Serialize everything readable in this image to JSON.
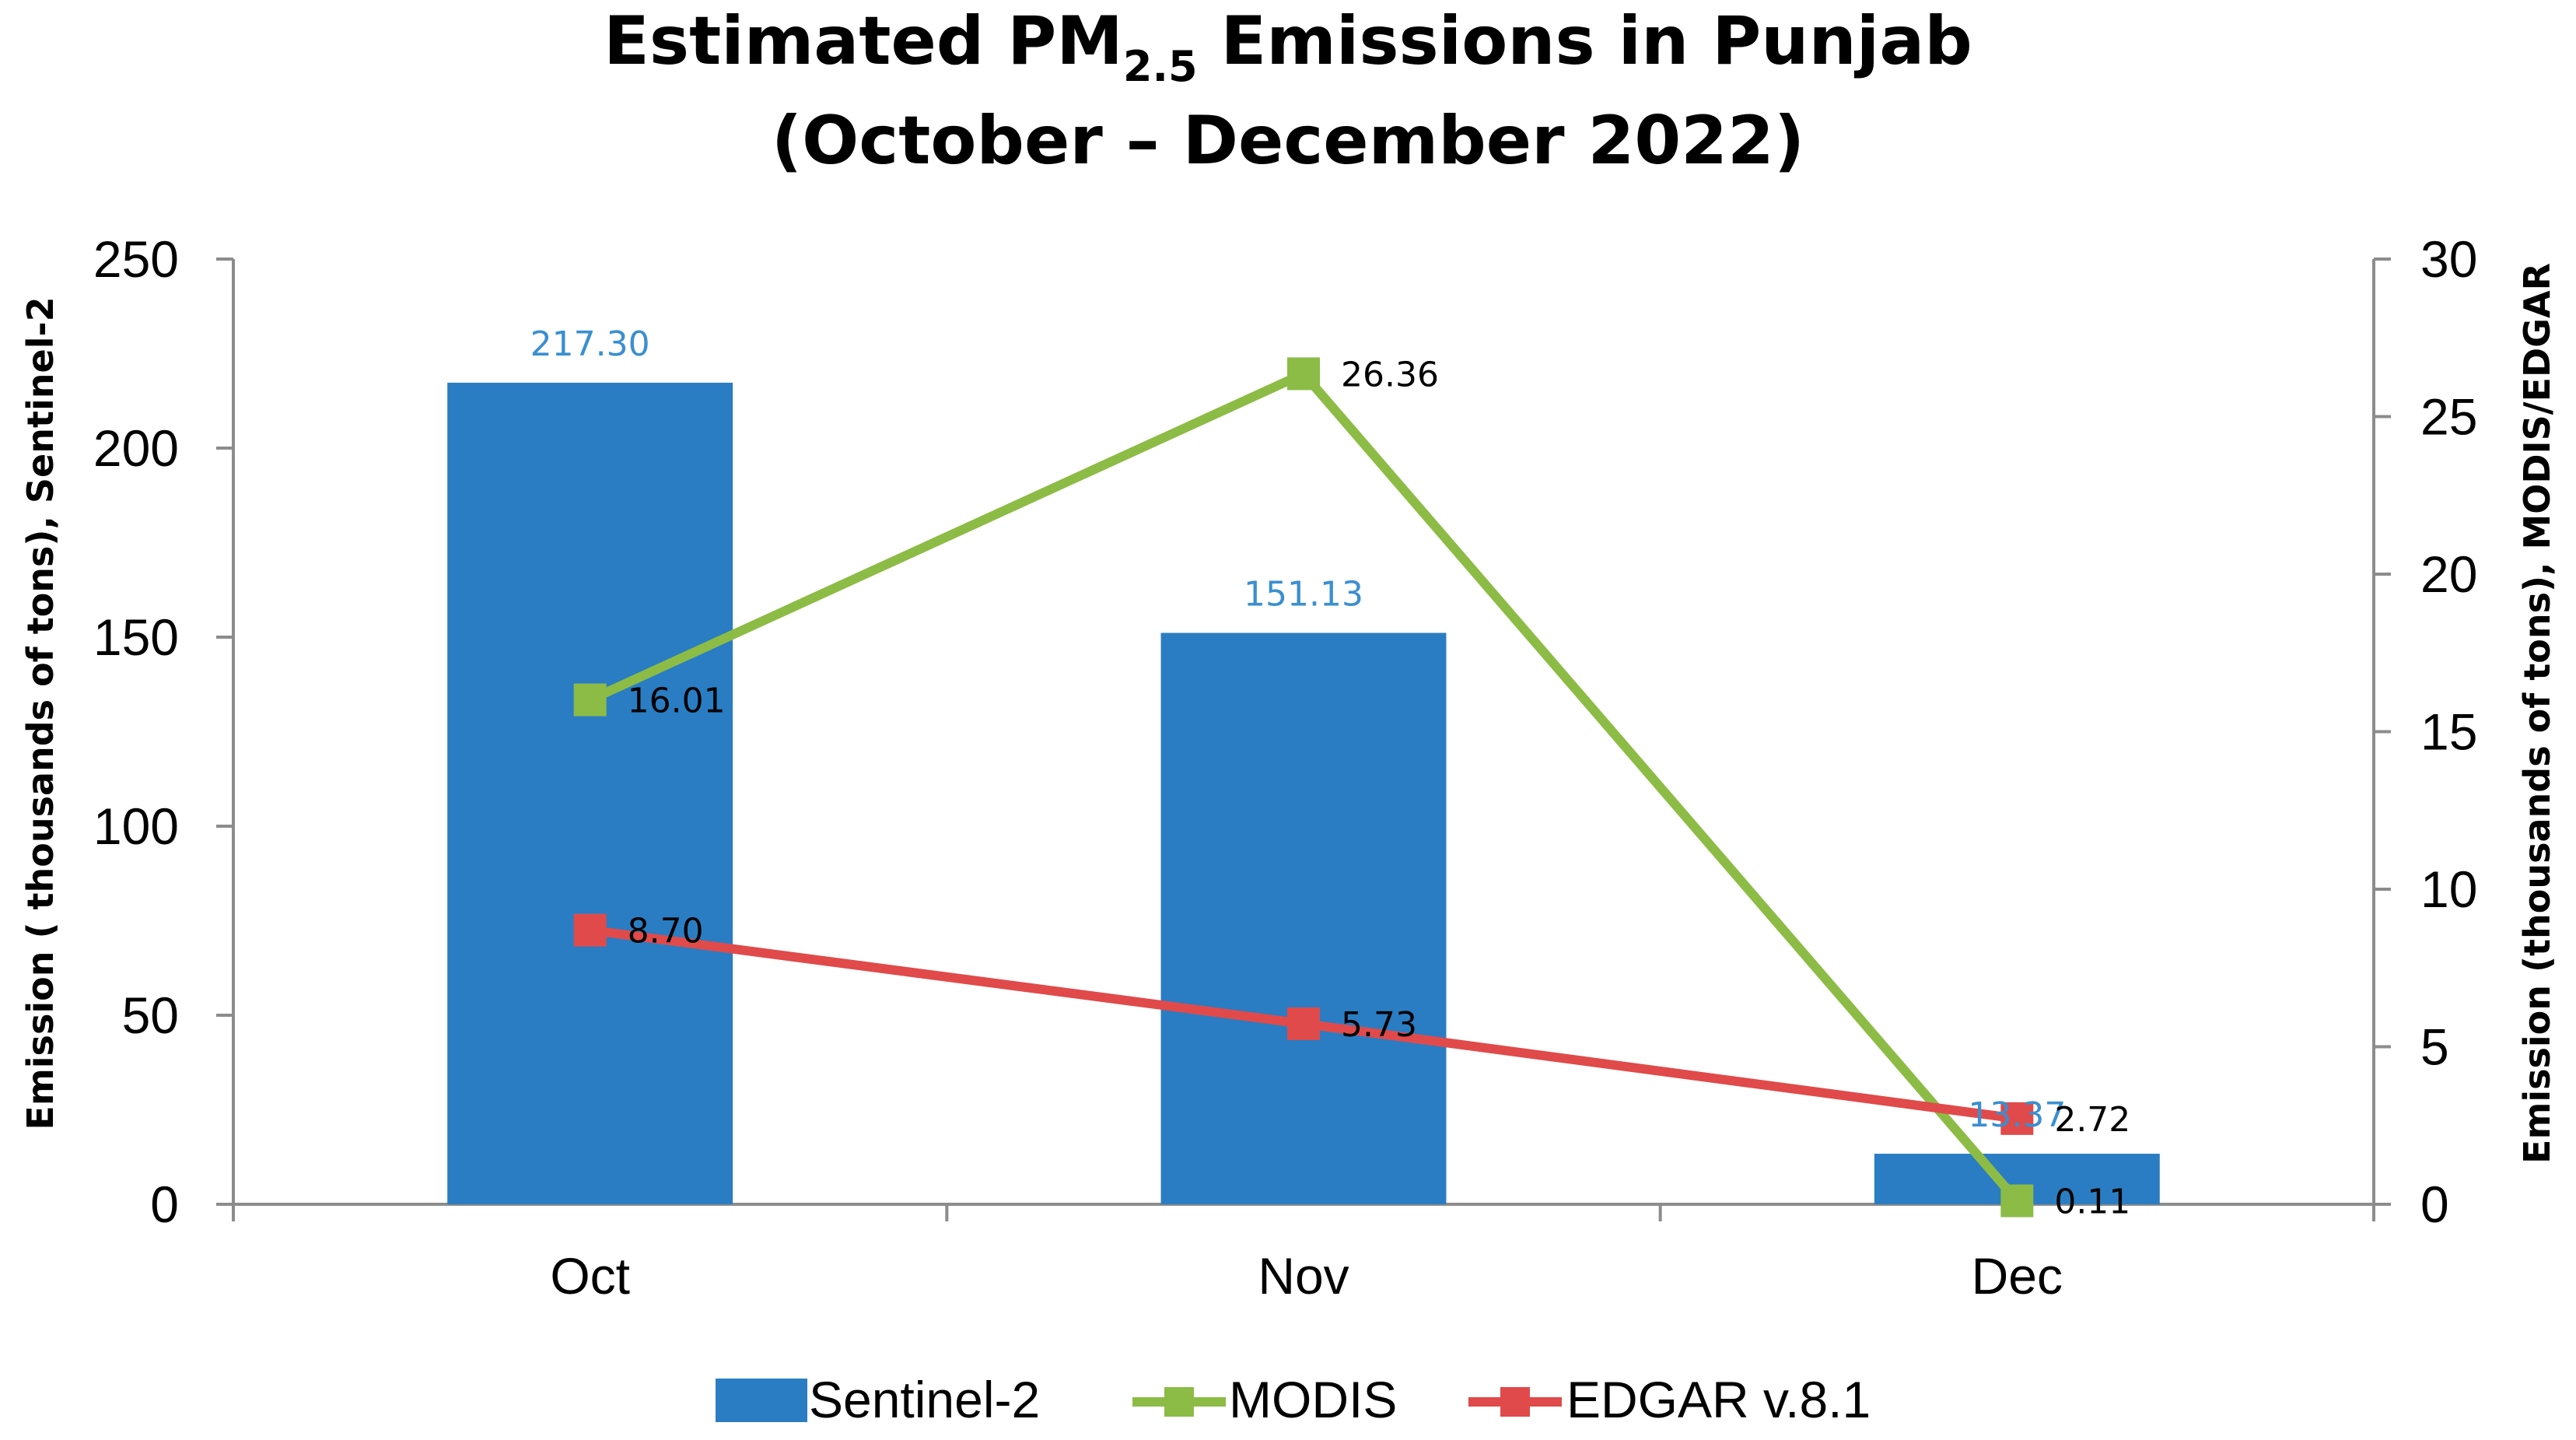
{
  "chart_data": {
    "type": "bar",
    "title": {
      "part1": "Estimated PM",
      "subscript": "2.5",
      "part2": " Emissions in Punjab",
      "line2": "(October – December 2022)"
    },
    "categories": [
      "Oct",
      "Nov",
      "Dec"
    ],
    "ylabel_left": "Emission ( thousands of tons), Sentinel-2",
    "ylabel_right": "Emission (thousands of tons), MODIS/EDGAR",
    "ylim_left": [
      0,
      250
    ],
    "yticks_left": [
      0,
      50,
      100,
      150,
      200,
      250
    ],
    "ylim_right": [
      0,
      30
    ],
    "yticks_right": [
      0,
      5,
      10,
      15,
      20,
      25,
      30
    ],
    "grid": false,
    "legend_position": "bottom",
    "series": [
      {
        "name": "Sentinel-2",
        "kind": "bar",
        "axis": "left",
        "color": "#2a7dc2",
        "label_color": "#3a8fd0",
        "values": [
          217.3,
          151.13,
          13.37
        ],
        "labels": [
          "217.30",
          "151.13",
          "13.37"
        ]
      },
      {
        "name": "MODIS",
        "kind": "line",
        "axis": "right",
        "color": "#8cbc45",
        "values": [
          16.01,
          26.36,
          0.11
        ],
        "labels": [
          "16.01",
          "26.36",
          "0.11"
        ]
      },
      {
        "name": "EDGAR v.8.1",
        "kind": "line",
        "axis": "right",
        "color": "#e04a4a",
        "values": [
          8.7,
          5.73,
          2.72
        ],
        "labels": [
          "8.70",
          "5.73",
          "2.72"
        ]
      }
    ]
  }
}
